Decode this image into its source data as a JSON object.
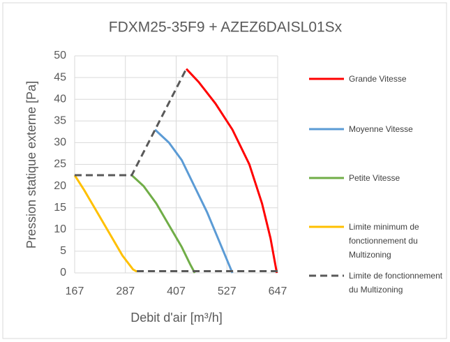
{
  "chart_data": {
    "type": "line",
    "title": "FDXM25-35F9 + AZEZ6DAISL01Sx",
    "xlabel": "Debit d'air [m³/h]",
    "ylabel": "Pression statique externe [Pa]",
    "xlim": [
      167,
      647
    ],
    "xticks": [
      167,
      287,
      407,
      527,
      647
    ],
    "ylim": [
      0,
      50
    ],
    "yticks": [
      0,
      5,
      10,
      15,
      20,
      25,
      30,
      35,
      40,
      45,
      50
    ],
    "grid": true,
    "legend": "right",
    "series": [
      {
        "name": "Grande Vitesse",
        "color": "#ff0000",
        "dash": false,
        "x": [
          431,
          460,
          500,
          540,
          580,
          610,
          630,
          645
        ],
        "values": [
          47,
          44,
          39,
          33,
          25,
          16,
          8,
          0
        ]
      },
      {
        "name": "Moyenne Vitesse",
        "color": "#5b9bd5",
        "dash": false,
        "x": [
          357,
          390,
          420,
          450,
          480,
          510,
          540
        ],
        "values": [
          33,
          30,
          26,
          20,
          14,
          7,
          0
        ]
      },
      {
        "name": "Petite Vitesse",
        "color": "#70ad47",
        "dash": false,
        "x": [
          302,
          330,
          360,
          390,
          420,
          440,
          451
        ],
        "values": [
          22.5,
          20,
          16,
          11,
          6,
          2,
          0
        ]
      },
      {
        "name": "Limite minimum de fonctionnement du Multizoning",
        "color": "#ffc000",
        "dash": false,
        "x": [
          167,
          190,
          220,
          250,
          280,
          305,
          314
        ],
        "values": [
          22.5,
          19,
          14,
          9,
          4,
          0.8,
          0.3
        ]
      },
      {
        "name": "Limite de fonctionnement du Multizoning",
        "color": "#595959",
        "dash": true,
        "x": [
          167,
          302,
          431,
          431,
          314,
          647
        ],
        "values": [
          22.5,
          22.5,
          47,
          null,
          0.4,
          0.4
        ]
      }
    ]
  }
}
